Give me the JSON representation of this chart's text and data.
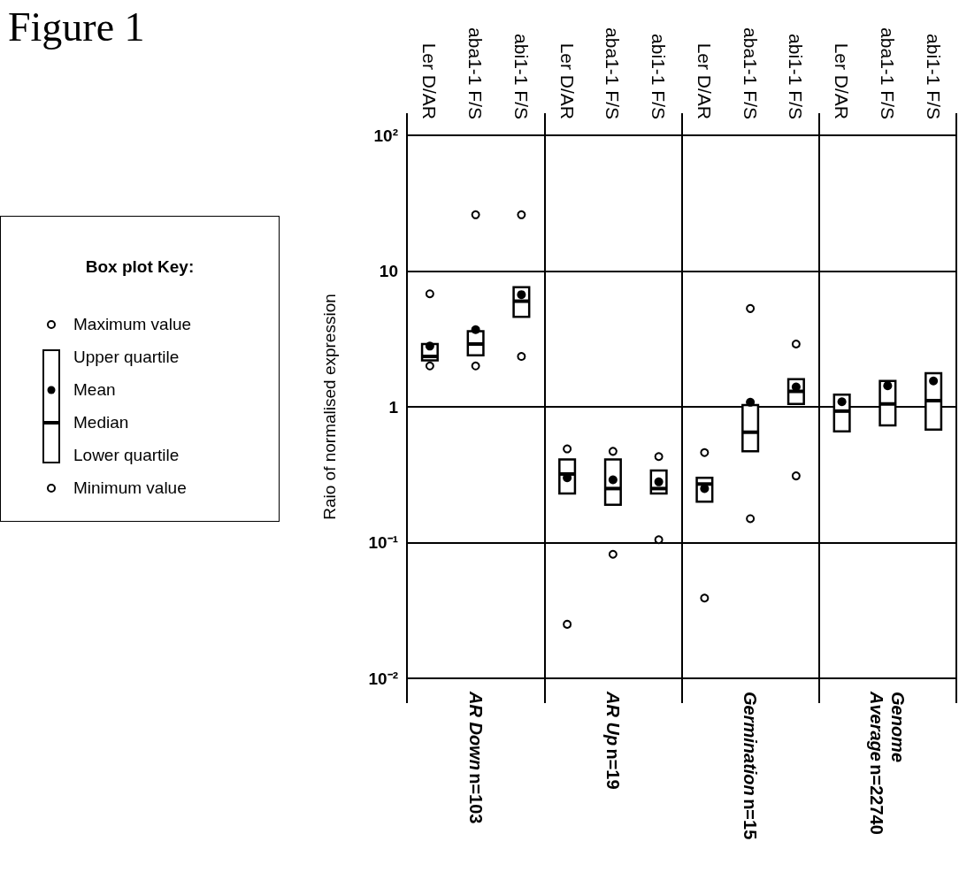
{
  "chart_data": {
    "type": "box",
    "title": "Figure 1",
    "ylabel": "Raio of normalised expression",
    "legend_title": "Box plot Key:",
    "grid": true,
    "log": "y",
    "categories": [
      "Ler D/AR",
      "aba1-1 F/S",
      "abi1-1 F/S",
      "Ler D/AR",
      "aba1-1 F/S",
      "abi1-1 F/S",
      "Ler D/AR",
      "aba1-1 F/S",
      "abi1-1 F/S",
      "Ler D/AR",
      "aba1-1 F/S",
      "abi1-1 F/S"
    ],
    "ylim": [
      0.01,
      100
    ],
    "yticks": [
      {
        "value": 0.01,
        "label": "10⁻²"
      },
      {
        "value": 0.1,
        "label": "10⁻¹"
      },
      1,
      10,
      {
        "value": 100,
        "label": "10²"
      }
    ],
    "boxes": [
      {
        "low": 2.2,
        "q1": 2.2,
        "median": 2.35,
        "q3": 2.9,
        "high": 2.9,
        "mean": 2.8,
        "outliers": [
          2.0,
          6.8
        ]
      },
      {
        "low": 2.4,
        "q1": 2.4,
        "median": 2.9,
        "q3": 3.6,
        "high": 3.6,
        "mean": 3.7,
        "outliers": [
          2.0,
          26
        ]
      },
      {
        "low": 4.6,
        "q1": 4.6,
        "median": 6.0,
        "q3": 7.6,
        "high": 7.6,
        "mean": 6.7,
        "outliers": [
          2.35,
          26
        ]
      },
      {
        "low": 0.23,
        "q1": 0.23,
        "median": 0.32,
        "q3": 0.41,
        "high": 0.41,
        "mean": 0.3,
        "outliers": [
          0.025,
          0.49
        ]
      },
      {
        "low": 0.19,
        "q1": 0.19,
        "median": 0.25,
        "q3": 0.41,
        "high": 0.41,
        "mean": 0.29,
        "outliers": [
          0.082,
          0.47
        ]
      },
      {
        "low": 0.23,
        "q1": 0.23,
        "median": 0.25,
        "q3": 0.34,
        "high": 0.34,
        "mean": 0.28,
        "outliers": [
          0.105,
          0.43
        ]
      },
      {
        "low": 0.2,
        "q1": 0.2,
        "median": 0.27,
        "q3": 0.3,
        "high": 0.3,
        "mean": 0.25,
        "outliers": [
          0.039,
          0.46
        ]
      },
      {
        "low": 0.47,
        "q1": 0.47,
        "median": 0.65,
        "q3": 1.03,
        "high": 1.03,
        "mean": 1.08,
        "outliers": [
          0.15,
          5.3
        ]
      },
      {
        "low": 1.05,
        "q1": 1.05,
        "median": 1.3,
        "q3": 1.6,
        "high": 1.6,
        "mean": 1.4,
        "outliers": [
          0.31,
          2.9
        ]
      },
      {
        "low": 0.66,
        "q1": 0.66,
        "median": 0.93,
        "q3": 1.23,
        "high": 1.23,
        "mean": 1.09
      },
      {
        "low": 0.73,
        "q1": 0.73,
        "median": 1.05,
        "q3": 1.55,
        "high": 1.55,
        "mean": 1.43
      },
      {
        "low": 0.68,
        "q1": 0.68,
        "median": 1.11,
        "q3": 1.77,
        "high": 1.77,
        "mean": 1.55
      }
    ],
    "annotations": [
      "AR Down n=103",
      "AR Up n=19",
      "Germination n=15",
      "Genome Average n=22740",
      "Maximum value",
      "Upper quartile",
      "Mean",
      "Median",
      "Lower quartile",
      "Minimum value"
    ]
  }
}
